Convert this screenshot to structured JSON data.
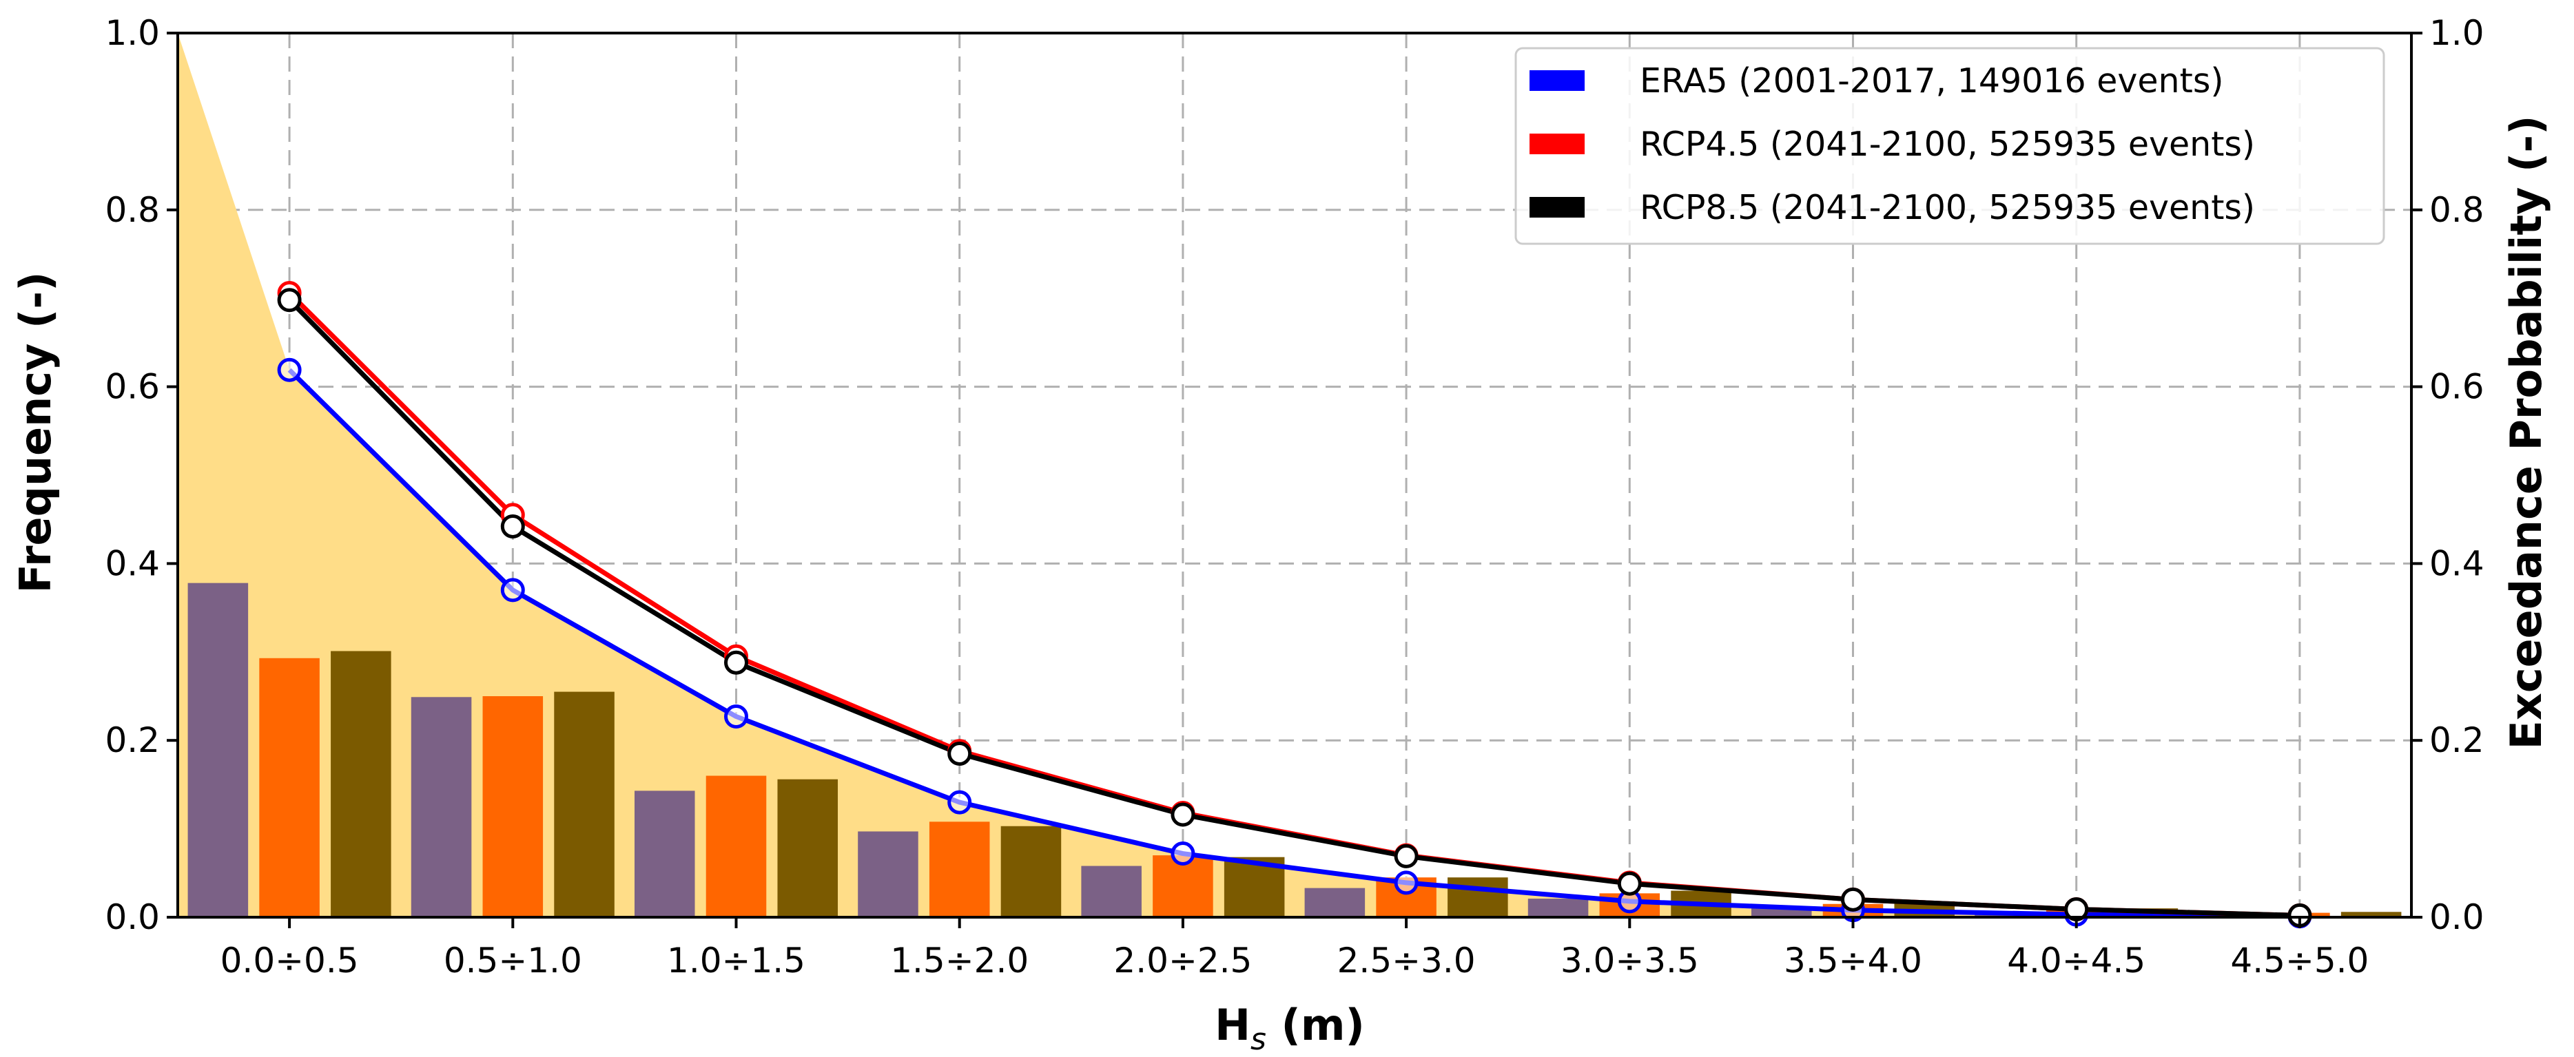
{
  "chart_data": {
    "type": "bar",
    "categories": [
      "0.0÷0.5",
      "0.5÷1.0",
      "1.0÷1.5",
      "1.5÷2.0",
      "2.0÷2.5",
      "2.5÷3.0",
      "3.0÷3.5",
      "3.5÷4.0",
      "4.0÷4.5",
      "4.5÷5.0"
    ],
    "xlabel_main": "H",
    "xlabel_sub": "s",
    "xlabel_unit": " (m)",
    "ylabel": "Frequency (-)",
    "ylabel_right": "Exceedance Probability (-)",
    "ylim": [
      0,
      1.0
    ],
    "ylim_right": [
      0,
      1.0
    ],
    "yticks": [
      "0.0",
      "0.2",
      "0.4",
      "0.6",
      "0.8",
      "1.0"
    ],
    "yticks_right": [
      "0.0",
      "0.2",
      "0.4",
      "0.6",
      "0.8",
      "1.0"
    ],
    "grid": true,
    "legend_position": "top-right",
    "series": [
      {
        "name": "ERA5 (2001-2017, 149016 events)",
        "legend_color": "#0000ff",
        "bar_color": "#7b6186",
        "frequency": [
          0.378,
          0.249,
          0.143,
          0.097,
          0.058,
          0.033,
          0.021,
          0.012,
          0.005,
          0.002
        ],
        "exceedance": [
          0.619,
          0.37,
          0.227,
          0.13,
          0.072,
          0.039,
          0.018,
          0.008,
          0.003,
          0.001
        ]
      },
      {
        "name": "RCP4.5 (2041-2100, 525935 events)",
        "legend_color": "#ff0000",
        "bar_color": "#ff6600",
        "frequency": [
          0.293,
          0.25,
          0.16,
          0.108,
          0.07,
          0.045,
          0.027,
          0.015,
          0.008,
          0.005
        ],
        "exceedance": [
          0.706,
          0.455,
          0.295,
          0.188,
          0.118,
          0.07,
          0.039,
          0.02,
          0.009,
          0.002
        ]
      },
      {
        "name": "RCP8.5 (2041-2100, 525935 events)",
        "legend_color": "#000000",
        "bar_color": "#7b5a00",
        "frequency": [
          0.301,
          0.255,
          0.156,
          0.103,
          0.068,
          0.045,
          0.03,
          0.018,
          0.01,
          0.006
        ],
        "exceedance": [
          0.698,
          0.442,
          0.288,
          0.185,
          0.116,
          0.069,
          0.038,
          0.02,
          0.009,
          0.002
        ]
      }
    ],
    "shaded_area": {
      "color": "#ffdd88",
      "start_value": 1.0
    }
  }
}
